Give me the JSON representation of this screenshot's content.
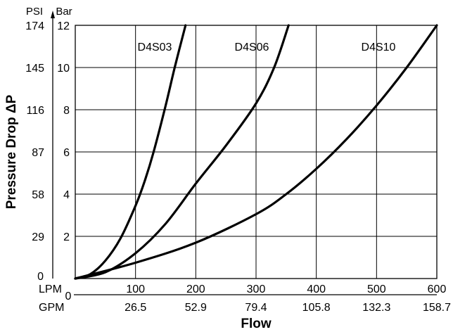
{
  "chart_data": {
    "type": "line",
    "xlabel": "Flow",
    "ylabel": "Pressure Drop ΔP",
    "x_unit_primary": "LPM",
    "x_unit_secondary": "GPM",
    "y_unit_primary": "Bar",
    "y_unit_secondary": "PSI",
    "xlim": [
      0,
      600
    ],
    "ylim": [
      0,
      12
    ],
    "grid": true,
    "x_ticks": [
      {
        "lpm": "100",
        "gpm": "26.5",
        "value": 100
      },
      {
        "lpm": "200",
        "gpm": "52.9",
        "value": 200
      },
      {
        "lpm": "300",
        "gpm": "79.4",
        "value": 300
      },
      {
        "lpm": "400",
        "gpm": "105.8",
        "value": 400
      },
      {
        "lpm": "500",
        "gpm": "132.3",
        "value": 500
      },
      {
        "lpm": "600",
        "gpm": "158.7",
        "value": 600
      }
    ],
    "x_zero_label": "0",
    "y_ticks": [
      {
        "bar": "2",
        "psi": "29",
        "value": 2
      },
      {
        "bar": "4",
        "psi": "58",
        "value": 4
      },
      {
        "bar": "6",
        "psi": "87",
        "value": 6
      },
      {
        "bar": "8",
        "psi": "116",
        "value": 8
      },
      {
        "bar": "10",
        "psi": "145",
        "value": 10
      },
      {
        "bar": "12",
        "psi": "174",
        "value": 12
      }
    ],
    "y_zero_label": "0",
    "series": [
      {
        "name": "D4S03",
        "x": [
          0,
          25,
          50,
          75,
          100,
          115,
          130,
          150,
          165,
          183
        ],
        "y": [
          0,
          0.21,
          0.85,
          1.9,
          3.45,
          4.6,
          6.0,
          8.2,
          10.0,
          12.0
        ]
      },
      {
        "name": "D4S06",
        "x": [
          0,
          50,
          100,
          150,
          200,
          250,
          300,
          330,
          354
        ],
        "y": [
          0,
          0.3,
          1.2,
          2.6,
          4.5,
          6.3,
          8.3,
          10.0,
          12.0
        ]
      },
      {
        "name": "D4S10",
        "x": [
          0,
          100,
          200,
          300,
          350,
          400,
          450,
          500,
          550,
          600
        ],
        "y": [
          0,
          0.75,
          1.7,
          3.05,
          4.0,
          5.2,
          6.6,
          8.2,
          10.0,
          12.0
        ]
      }
    ]
  }
}
